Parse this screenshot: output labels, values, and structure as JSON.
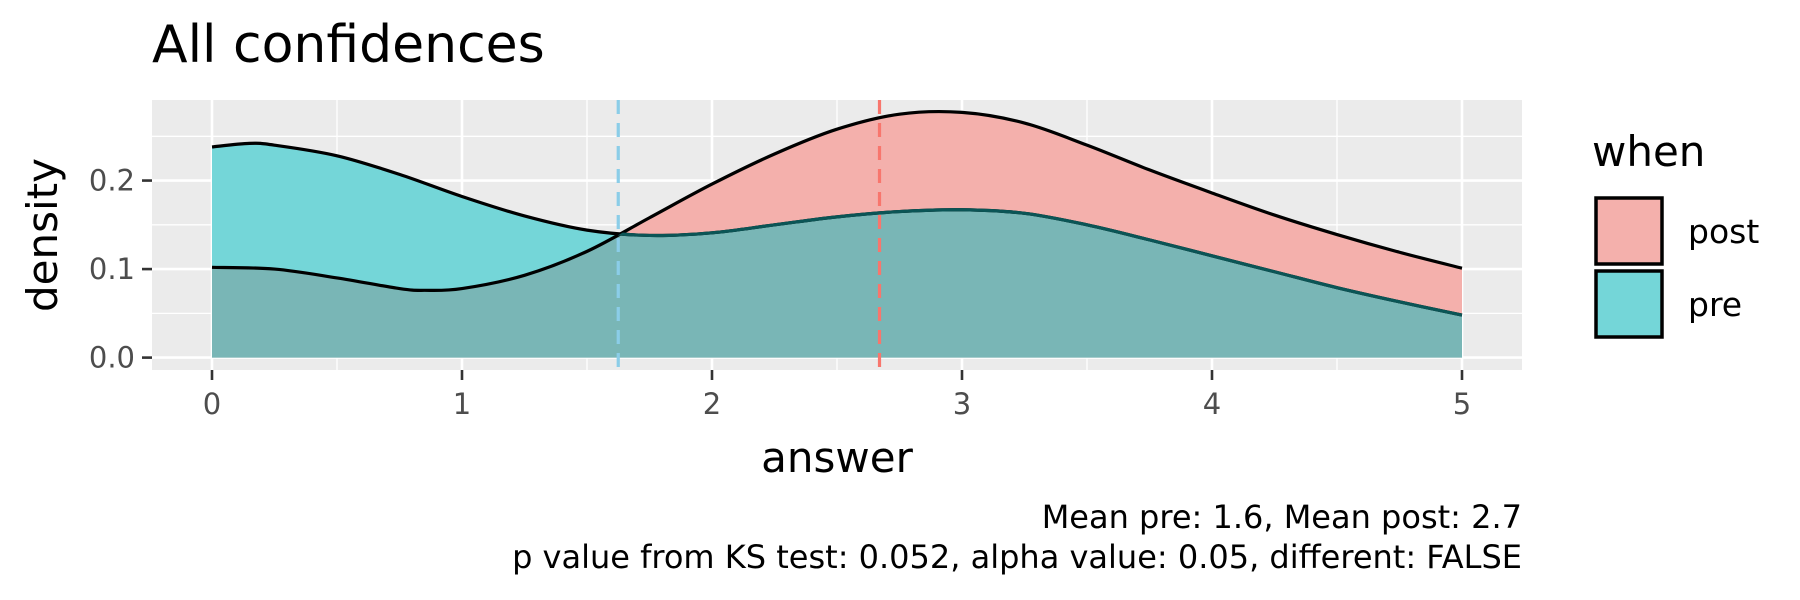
{
  "chart_data": {
    "type": "area",
    "title": "All confidences",
    "xlabel": "answer",
    "ylabel": "density",
    "xlim": [
      -0.24,
      5.24
    ],
    "ylim": [
      -0.014,
      0.291
    ],
    "x_ticks": [
      0,
      1,
      2,
      3,
      4,
      5
    ],
    "y_ticks": [
      0.0,
      0.1,
      0.2
    ],
    "y_tick_labels": [
      "0.0",
      "0.1",
      "0.2"
    ],
    "x_minor_ticks": [
      0.5,
      1.5,
      2.5,
      3.5,
      4.5
    ],
    "y_minor_ticks": [
      0.05,
      0.15,
      0.25
    ],
    "grid": true,
    "legend": {
      "title": "when",
      "placement": "right",
      "entries": [
        {
          "label": "post",
          "color": "#F8766D"
        },
        {
          "label": "pre",
          "color": "#00BFC4"
        }
      ]
    },
    "series": [
      {
        "name": "post",
        "color": "#F8766D",
        "fill": "#F4B0AC",
        "mean": 2.7,
        "x": [
          0,
          0.25,
          0.5,
          0.75,
          0.85,
          1.0,
          1.25,
          1.5,
          1.75,
          2.0,
          2.25,
          2.5,
          2.75,
          3.0,
          3.25,
          3.5,
          3.75,
          4.0,
          4.25,
          4.5,
          4.75,
          5.0
        ],
        "values": [
          0.102,
          0.1,
          0.09,
          0.078,
          0.076,
          0.078,
          0.093,
          0.12,
          0.158,
          0.196,
          0.23,
          0.258,
          0.275,
          0.277,
          0.265,
          0.24,
          0.212,
          0.186,
          0.161,
          0.139,
          0.119,
          0.101
        ]
      },
      {
        "name": "pre",
        "color": "#00BFC4",
        "fill": "#74D6D8",
        "mean": 1.6,
        "x": [
          0,
          0.15,
          0.25,
          0.5,
          0.75,
          1.0,
          1.25,
          1.5,
          1.75,
          2.0,
          2.25,
          2.5,
          2.75,
          3.0,
          3.25,
          3.5,
          3.75,
          4.0,
          4.25,
          4.5,
          4.75,
          5.0
        ],
        "values": [
          0.238,
          0.242,
          0.24,
          0.228,
          0.207,
          0.182,
          0.16,
          0.144,
          0.138,
          0.141,
          0.15,
          0.159,
          0.165,
          0.167,
          0.163,
          0.15,
          0.133,
          0.115,
          0.097,
          0.079,
          0.063,
          0.048
        ]
      }
    ],
    "mean_lines": [
      {
        "series": "pre",
        "x": 1.625,
        "color": "#8BCDE8"
      },
      {
        "series": "post",
        "x": 2.67,
        "color": "#F8766D"
      }
    ],
    "overlap_fill": "#79B6B6",
    "caption": [
      "Mean pre: 1.6, Mean post: 2.7",
      "p value from KS test: 0.052, alpha value: 0.05, different: FALSE"
    ]
  }
}
